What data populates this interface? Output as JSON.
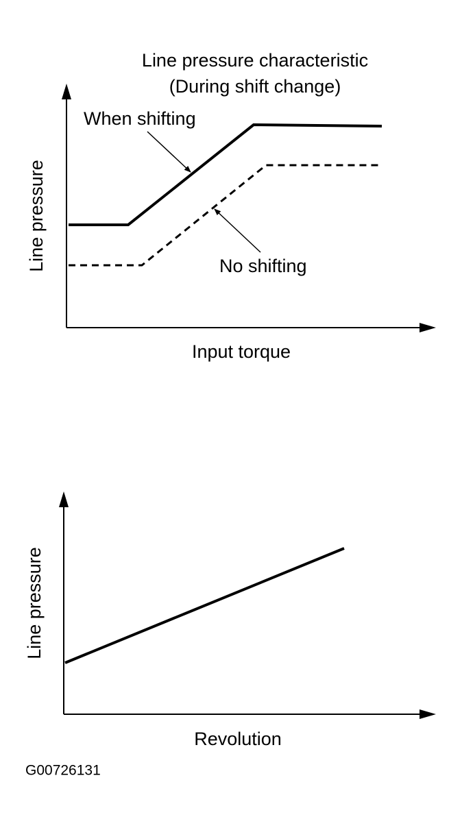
{
  "top_chart": {
    "title": "Line pressure characteristic",
    "subtitle": "(During shift change)",
    "y_label": "Line pressure",
    "x_label": "Input torque",
    "annotations": {
      "when_shifting": "When shifting",
      "no_shifting": "No shifting"
    }
  },
  "bottom_chart": {
    "y_label": "Line pressure",
    "x_label": "Revolution"
  },
  "figure_id": "G00726131"
}
